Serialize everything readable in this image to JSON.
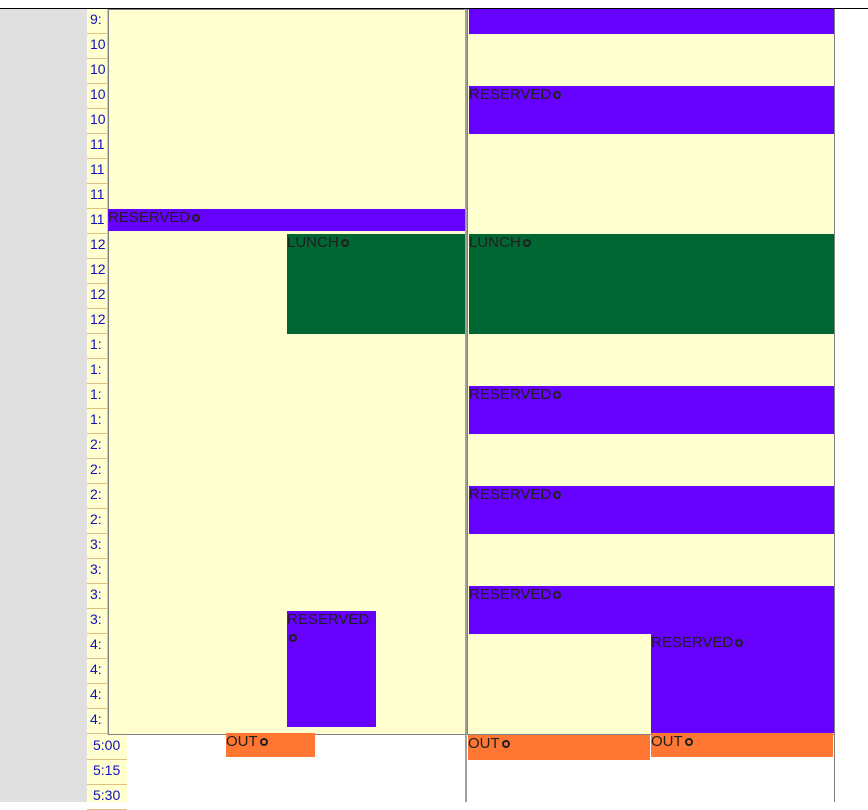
{
  "time_labels": [
    "9:",
    "10",
    "10",
    "10",
    "10",
    "11",
    "11",
    "11",
    "11",
    "12",
    "12",
    "12",
    "12",
    "1:",
    "1:",
    "1:",
    "1:",
    "2:",
    "2:",
    "2:",
    "2:",
    "3:",
    "3:",
    "3:",
    "3:",
    "4:",
    "4:",
    "4:",
    "4:"
  ],
  "evening_labels": [
    "5:00",
    "5:15",
    "5:30"
  ],
  "events": {
    "reserved_label": "RESERVED",
    "lunch_label": "LUNCH",
    "out_label": "OUT"
  },
  "colors": {
    "reserved": "#6600ff",
    "lunch": "#006633",
    "out": "#ff7733",
    "free": "#ffffd0"
  }
}
